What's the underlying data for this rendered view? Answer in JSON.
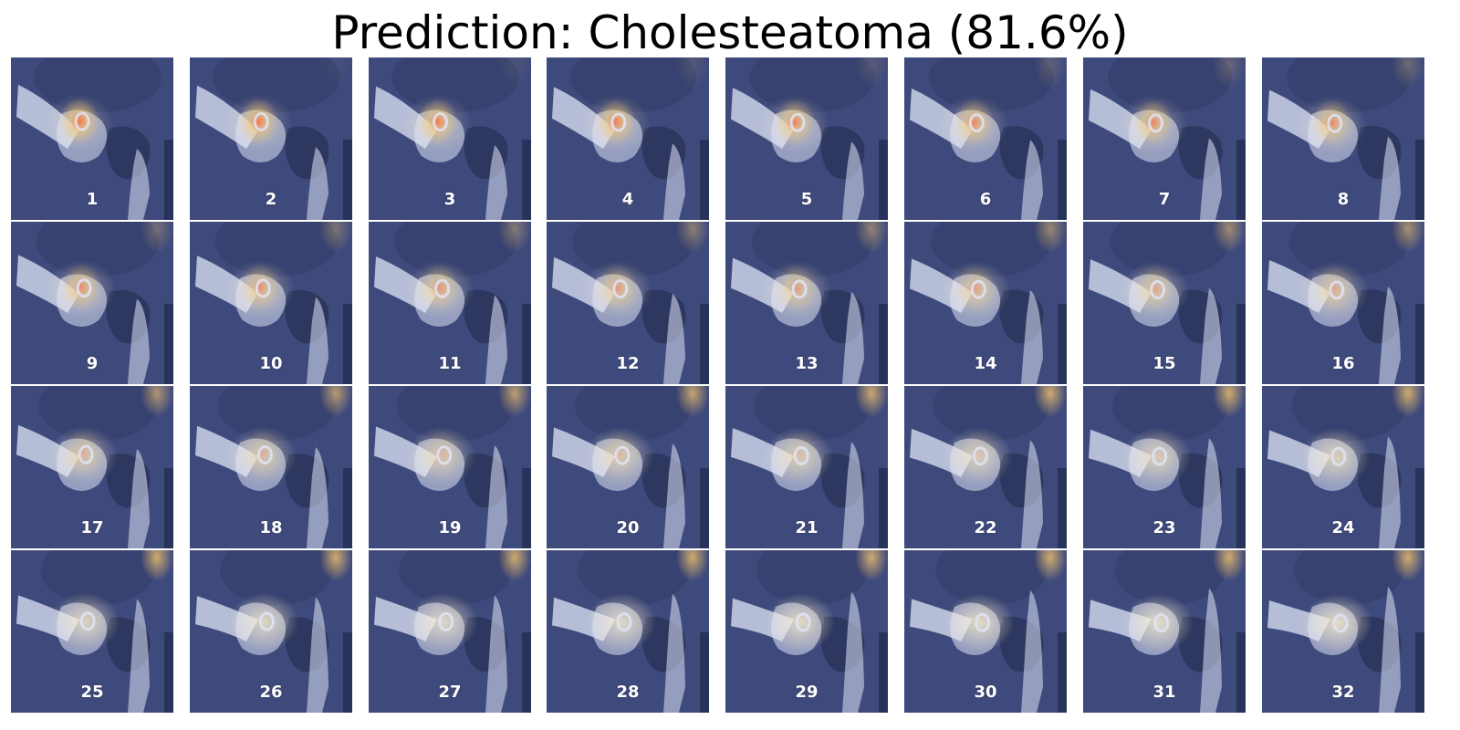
{
  "title": "Prediction: Cholesteatoma (81.6%)",
  "prediction": {
    "label": "Cholesteatoma",
    "confidence_percent": 81.6
  },
  "colors": {
    "background_tint": "#3f4a7c",
    "bone": "#dfe4f6",
    "air": "#283256",
    "heat_hot": "#ff6a3a",
    "heat_warm": "#f2c36a"
  },
  "slices": [
    {
      "label": "1"
    },
    {
      "label": "2"
    },
    {
      "label": "3"
    },
    {
      "label": "4"
    },
    {
      "label": "5"
    },
    {
      "label": "6"
    },
    {
      "label": "7"
    },
    {
      "label": "8"
    },
    {
      "label": "9"
    },
    {
      "label": "10"
    },
    {
      "label": "11"
    },
    {
      "label": "12"
    },
    {
      "label": "13"
    },
    {
      "label": "14"
    },
    {
      "label": "15"
    },
    {
      "label": "16"
    },
    {
      "label": "17"
    },
    {
      "label": "18"
    },
    {
      "label": "19"
    },
    {
      "label": "20"
    },
    {
      "label": "21"
    },
    {
      "label": "22"
    },
    {
      "label": "23"
    },
    {
      "label": "24"
    },
    {
      "label": "25"
    },
    {
      "label": "26"
    },
    {
      "label": "27"
    },
    {
      "label": "28"
    },
    {
      "label": "29"
    },
    {
      "label": "30"
    },
    {
      "label": "31"
    },
    {
      "label": "32"
    }
  ]
}
